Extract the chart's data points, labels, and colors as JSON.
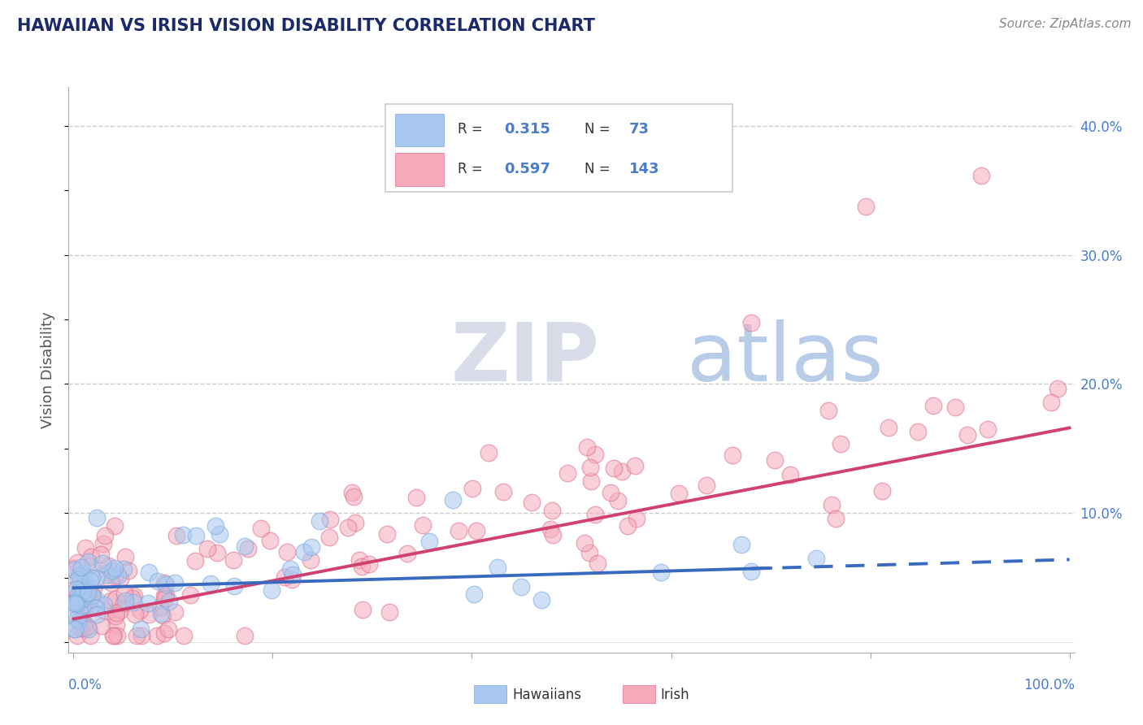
{
  "title": "HAWAIIAN VS IRISH VISION DISABILITY CORRELATION CHART",
  "source": "Source: ZipAtlas.com",
  "ylabel": "Vision Disability",
  "hawaiian_color": "#a8c8f0",
  "hawaiian_edge_color": "#7aaade",
  "irish_color": "#f5aabb",
  "irish_edge_color": "#e07090",
  "hawaiian_line_color": "#3a6abf",
  "irish_line_color": "#d04070",
  "hawaiian_R": "0.315",
  "hawaiian_N": "73",
  "irish_R": "0.597",
  "irish_N": "143",
  "background_color": "#ffffff",
  "grid_color": "#cccccc",
  "title_color": "#1a2a6a",
  "axis_label_color": "#4a7dc9",
  "watermark_zip": "ZIP",
  "watermark_atlas": "atlas",
  "watermark_zip_color": "#d8dce8",
  "watermark_atlas_color": "#b8cce8"
}
